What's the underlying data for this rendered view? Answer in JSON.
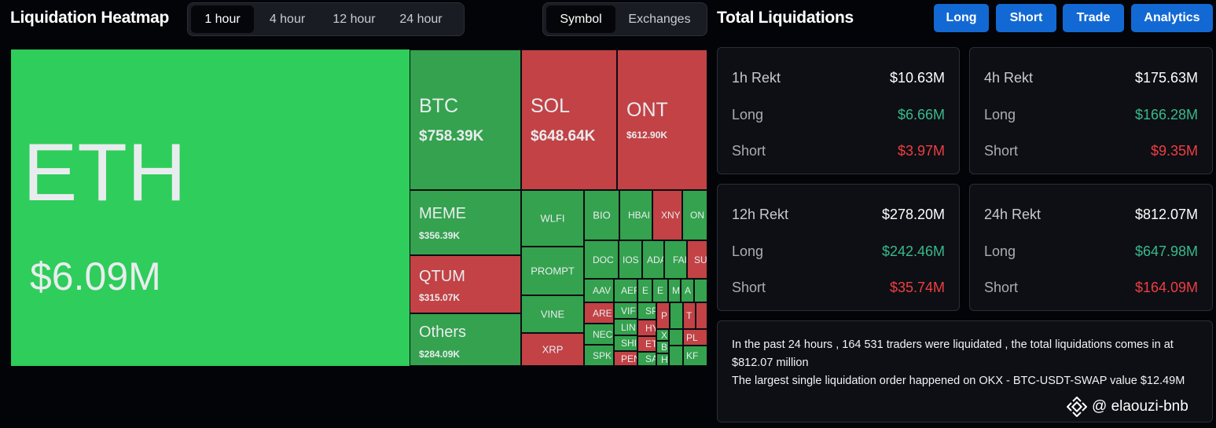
{
  "heatmap": {
    "title": "Liquidation Heatmap",
    "time_tabs": [
      {
        "label": "1 hour",
        "active": true
      },
      {
        "label": "4 hour",
        "active": false
      },
      {
        "label": "12 hour",
        "active": false
      },
      {
        "label": "24 hour",
        "active": false
      }
    ],
    "view_tabs": [
      {
        "label": "Symbol",
        "active": true
      },
      {
        "label": "Exchanges",
        "active": false
      }
    ],
    "tiles": {
      "eth": {
        "symbol": "ETH",
        "value": "$6.09M"
      },
      "btc": {
        "symbol": "BTC",
        "value": "$758.39K"
      },
      "sol": {
        "symbol": "SOL",
        "value": "$648.64K"
      },
      "ont": {
        "symbol": "ONT",
        "value": "$612.90K"
      },
      "meme": {
        "symbol": "MEME",
        "value": "$356.39K"
      },
      "qtum": {
        "symbol": "QTUM",
        "value": "$315.07K"
      },
      "others": {
        "symbol": "Others",
        "value": "$284.09K"
      },
      "wlfi": {
        "symbol": "WLFI"
      },
      "prompt": {
        "symbol": "PROMPT"
      },
      "vine": {
        "symbol": "VINE"
      },
      "xrp": {
        "symbol": "XRP"
      },
      "bio": {
        "symbol": "BIO"
      },
      "hbar": {
        "symbol": "HBAI"
      },
      "xny": {
        "symbol": "XNY"
      },
      "on": {
        "symbol": "ON"
      },
      "doc": {
        "symbol": "DOC"
      },
      "ios": {
        "symbol": "IOS"
      },
      "ada": {
        "symbol": "ADA"
      },
      "fa": {
        "symbol": "FAI"
      },
      "su": {
        "symbol": "SU"
      },
      "aav": {
        "symbol": "AAV"
      },
      "aer": {
        "symbol": "AEF"
      },
      "are": {
        "symbol": "ARE"
      },
      "vir": {
        "symbol": "VIF"
      },
      "lin": {
        "symbol": "LIN"
      },
      "neo": {
        "symbol": "NEC"
      },
      "shi": {
        "symbol": "SHI"
      },
      "spk": {
        "symbol": "SPK"
      },
      "pen": {
        "symbol": "PEN"
      },
      "sp": {
        "symbol": "SP"
      },
      "hy": {
        "symbol": "HY"
      },
      "et": {
        "symbol": "ET"
      },
      "sa": {
        "symbol": "SA"
      },
      "x": {
        "symbol": "X"
      },
      "b": {
        "symbol": "B"
      },
      "h": {
        "symbol": "H"
      },
      "p": {
        "symbol": "P"
      },
      "t": {
        "symbol": "T"
      },
      "pl": {
        "symbol": "PL"
      },
      "kf": {
        "symbol": "KF"
      },
      "e1": {
        "symbol": "E"
      },
      "e2": {
        "symbol": "E"
      },
      "a": {
        "symbol": "A"
      },
      "m": {
        "symbol": "M"
      }
    }
  },
  "total": {
    "title": "Total Liquidations",
    "buttons": {
      "long": "Long",
      "short": "Short",
      "trade": "Trade",
      "analytics": "Analytics"
    },
    "cards": [
      {
        "title": "1h Rekt",
        "total": "$10.63M",
        "long_label": "Long",
        "long": "$6.66M",
        "short_label": "Short",
        "short": "$3.97M"
      },
      {
        "title": "4h Rekt",
        "total": "$175.63M",
        "long_label": "Long",
        "long": "$166.28M",
        "short_label": "Short",
        "short": "$9.35M"
      },
      {
        "title": "12h Rekt",
        "total": "$278.20M",
        "long_label": "Long",
        "long": "$242.46M",
        "short_label": "Short",
        "short": "$35.74M"
      },
      {
        "title": "24h Rekt",
        "total": "$812.07M",
        "long_label": "Long",
        "long": "$647.98M",
        "short_label": "Short",
        "short": "$164.09M"
      }
    ],
    "summary_line1": "In the past 24 hours , 164 531 traders were liquidated , the total liquidations comes in at $812.07 million",
    "summary_line2": "The largest single liquidation order happened on OKX - BTC-USDT-SWAP value $12.49M"
  },
  "watermark": {
    "icon": "binance-logo-icon",
    "text": "@ elaouzi-bnb"
  }
}
